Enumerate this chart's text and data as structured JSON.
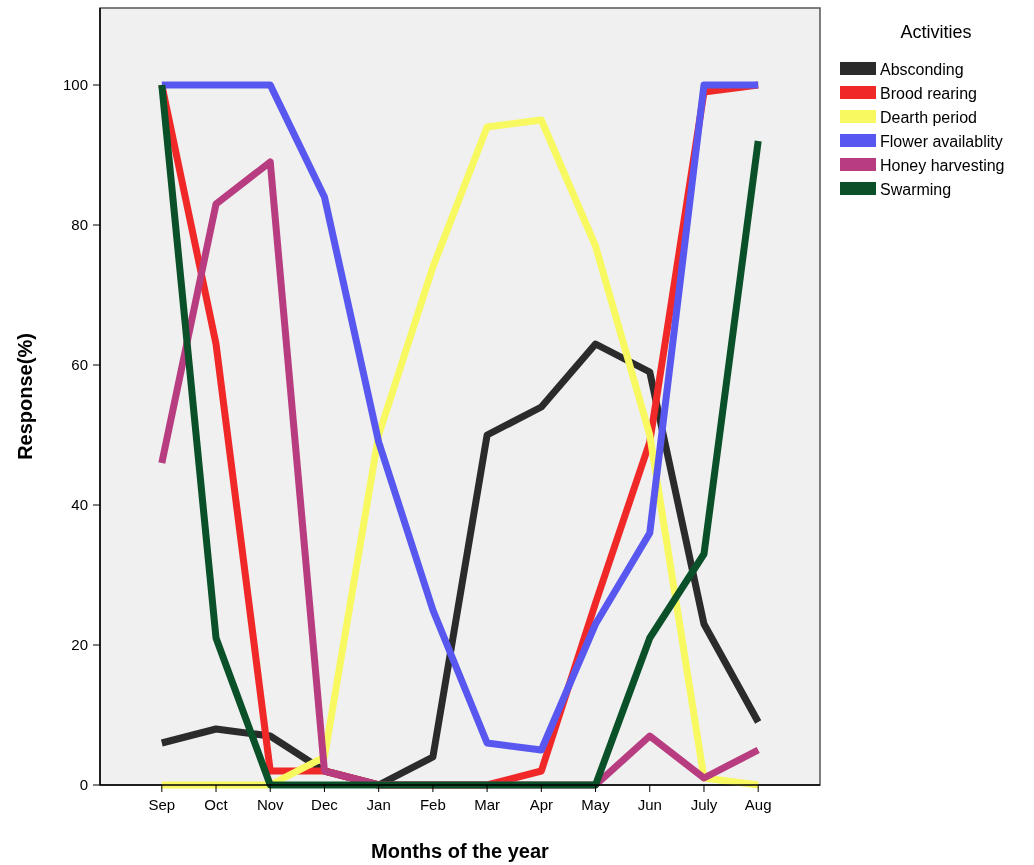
{
  "chart_data": {
    "type": "line",
    "xlabel": "Months of the year",
    "ylabel": "Response(%)",
    "legend_title": "Activities",
    "legend": "right",
    "grid": false,
    "marker": "none",
    "line_style": "solid",
    "categories": [
      "Sep",
      "Oct",
      "Nov",
      "Dec",
      "Jan",
      "Feb",
      "Mar",
      "Apr",
      "May",
      "Jun",
      "July",
      "Aug"
    ],
    "ylim": [
      0,
      111
    ],
    "yticks": [
      0,
      20,
      40,
      60,
      80,
      100
    ],
    "series": [
      {
        "name": "Absconding",
        "color": "#2b2b2b",
        "values": [
          6,
          8,
          7,
          2,
          0,
          4,
          50,
          54,
          63,
          59,
          23,
          9
        ]
      },
      {
        "name": "Brood rearing",
        "color": "#f02828",
        "values": [
          100,
          63,
          2,
          2,
          0,
          0,
          0,
          2,
          26,
          49,
          99,
          100
        ]
      },
      {
        "name": "Dearth period",
        "color": "#f8f860",
        "values": [
          0,
          0,
          0,
          4,
          50,
          74,
          94,
          95,
          77,
          50,
          1,
          0
        ]
      },
      {
        "name": "Flower availablity",
        "color": "#5858f0",
        "values": [
          100,
          100,
          100,
          84,
          49,
          25,
          6,
          5,
          23,
          36,
          100,
          100
        ]
      },
      {
        "name": "Honey harvesting",
        "color": "#b83c80",
        "values": [
          46,
          83,
          89,
          2,
          0,
          0,
          0,
          0,
          0,
          7,
          1,
          5
        ]
      },
      {
        "name": "Swarming",
        "color": "#0a5028",
        "values": [
          100,
          21,
          0,
          0,
          0,
          0,
          0,
          0,
          0,
          21,
          33,
          92
        ]
      }
    ]
  }
}
